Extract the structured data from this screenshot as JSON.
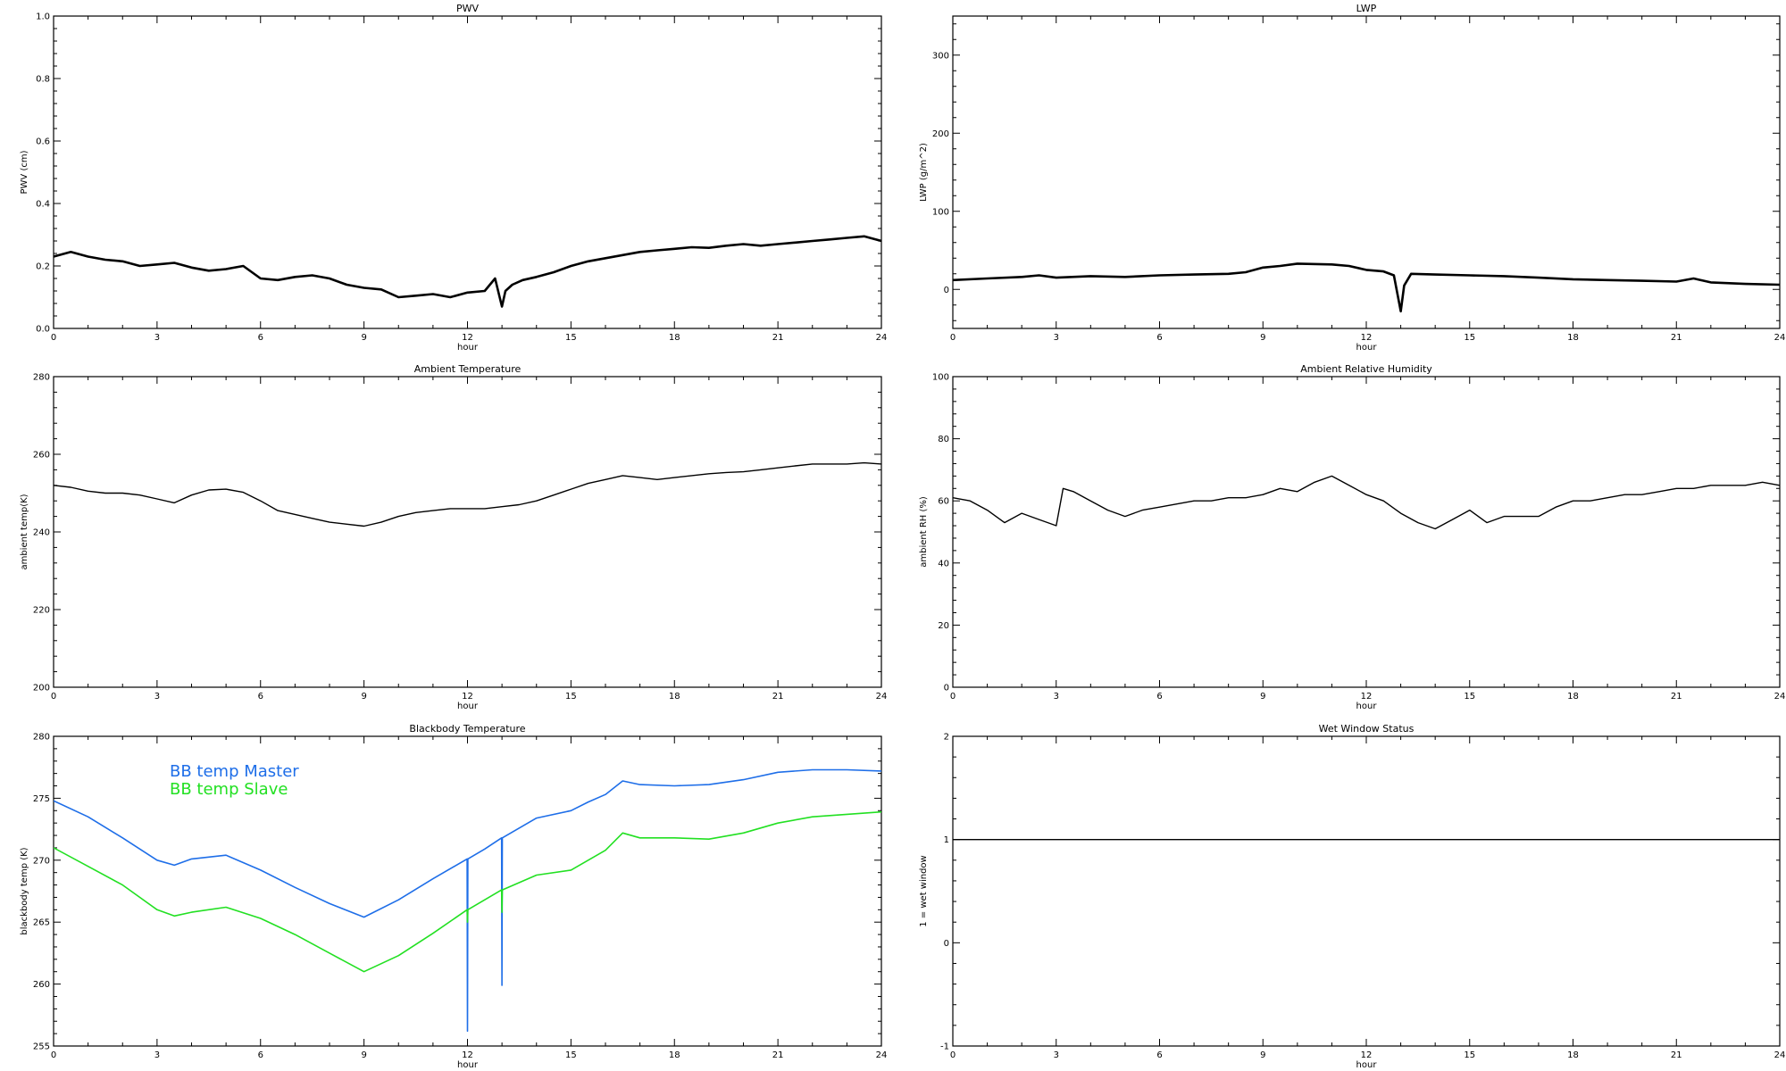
{
  "figure": {
    "background": "#ffffff"
  },
  "chart_data": [
    {
      "id": "pwv",
      "type": "line",
      "title": "PWV",
      "xlabel": "hour",
      "ylabel": "PWV (cm)",
      "xlim": [
        0,
        24
      ],
      "ylim": [
        0.0,
        1.0
      ],
      "xticks": [
        0,
        3,
        6,
        9,
        12,
        15,
        18,
        21,
        24
      ],
      "xtick_labels": [
        "0",
        "3",
        "6",
        "9",
        "12",
        "15",
        "18",
        "21",
        "24"
      ],
      "yticks": [
        0.0,
        0.2,
        0.4,
        0.6,
        0.8,
        1.0
      ],
      "ytick_labels": [
        "0.0",
        "0.2",
        "0.4",
        "0.6",
        "0.8",
        "1.0"
      ],
      "grid": false,
      "series": [
        {
          "color": "#000000",
          "x": [
            0,
            0.5,
            1,
            1.5,
            2,
            2.5,
            3,
            3.5,
            4,
            4.5,
            5,
            5.5,
            6,
            6.5,
            7,
            7.5,
            8,
            8.5,
            9,
            9.5,
            10,
            10.5,
            11,
            11.5,
            12,
            12.5,
            12.8,
            13.0,
            13.1,
            13.3,
            13.6,
            14,
            14.5,
            15,
            15.5,
            16,
            16.5,
            17,
            17.5,
            18,
            18.5,
            19,
            19.5,
            20,
            20.5,
            21,
            21.5,
            22,
            22.5,
            23,
            23.5,
            24
          ],
          "y": [
            0.23,
            0.245,
            0.23,
            0.22,
            0.215,
            0.2,
            0.205,
            0.21,
            0.195,
            0.185,
            0.19,
            0.2,
            0.16,
            0.155,
            0.165,
            0.17,
            0.16,
            0.14,
            0.13,
            0.125,
            0.1,
            0.105,
            0.11,
            0.1,
            0.115,
            0.12,
            0.16,
            0.07,
            0.12,
            0.14,
            0.155,
            0.165,
            0.18,
            0.2,
            0.215,
            0.225,
            0.235,
            0.245,
            0.25,
            0.255,
            0.26,
            0.258,
            0.265,
            0.27,
            0.265,
            0.27,
            0.275,
            0.28,
            0.285,
            0.29,
            0.295,
            0.28
          ]
        }
      ]
    },
    {
      "id": "lwp",
      "type": "line",
      "title": "LWP",
      "xlabel": "hour",
      "ylabel": "LWP (g/m^2)",
      "xlim": [
        0,
        24
      ],
      "ylim": [
        -50,
        350
      ],
      "xticks": [
        0,
        3,
        6,
        9,
        12,
        15,
        18,
        21,
        24
      ],
      "xtick_labels": [
        "0",
        "3",
        "6",
        "9",
        "12",
        "15",
        "18",
        "21",
        "24"
      ],
      "yticks": [
        0,
        100,
        200,
        300
      ],
      "ytick_labels": [
        "0",
        "100",
        "200",
        "300"
      ],
      "grid": false,
      "series": [
        {
          "color": "#000000",
          "x": [
            0,
            1,
            2,
            2.5,
            3,
            4,
            5,
            6,
            7,
            8,
            8.5,
            9,
            9.5,
            10,
            11,
            11.5,
            12,
            12.5,
            12.8,
            13.0,
            13.1,
            13.3,
            14,
            15,
            16,
            17,
            18,
            19,
            20,
            21,
            21.5,
            22,
            23,
            24
          ],
          "y": [
            12,
            14,
            16,
            18,
            15,
            17,
            16,
            18,
            19,
            20,
            22,
            28,
            30,
            33,
            32,
            30,
            25,
            23,
            18,
            -28,
            5,
            20,
            19,
            18,
            17,
            15,
            13,
            12,
            11,
            10,
            14,
            9,
            7,
            6
          ]
        }
      ]
    },
    {
      "id": "ambient_temp",
      "type": "line",
      "title": "Ambient Temperature",
      "xlabel": "hour",
      "ylabel": "ambient temp(K)",
      "xlim": [
        0,
        24
      ],
      "ylim": [
        200,
        280
      ],
      "xticks": [
        0,
        3,
        6,
        9,
        12,
        15,
        18,
        21,
        24
      ],
      "xtick_labels": [
        "0",
        "3",
        "6",
        "9",
        "12",
        "15",
        "18",
        "21",
        "24"
      ],
      "yticks": [
        200,
        220,
        240,
        260,
        280
      ],
      "ytick_labels": [
        "200",
        "220",
        "240",
        "260",
        "280"
      ],
      "grid": false,
      "series": [
        {
          "color": "#000000",
          "x": [
            0,
            0.5,
            1,
            1.5,
            2,
            2.5,
            3,
            3.5,
            4,
            4.5,
            5,
            5.5,
            6,
            6.5,
            7,
            7.5,
            8,
            8.5,
            9,
            9.5,
            10,
            10.5,
            11,
            11.5,
            12,
            12.5,
            13,
            13.5,
            14,
            14.5,
            15,
            15.5,
            16,
            16.5,
            17,
            17.5,
            18,
            18.5,
            19,
            19.5,
            20,
            20.5,
            21,
            21.5,
            22,
            22.5,
            23,
            23.5,
            24
          ],
          "y": [
            252,
            251.5,
            250.5,
            250,
            250,
            249.5,
            248.5,
            247.5,
            249.5,
            250.8,
            251,
            250.2,
            248,
            245.5,
            244.5,
            243.5,
            242.5,
            242,
            241.5,
            242.5,
            244,
            245,
            245.5,
            246,
            246,
            246,
            246.5,
            247,
            248,
            249.5,
            251,
            252.5,
            253.5,
            254.5,
            254,
            253.5,
            254,
            254.5,
            255,
            255.3,
            255.5,
            256,
            256.5,
            257,
            257.5,
            257.5,
            257.5,
            257.8,
            257.5
          ]
        }
      ]
    },
    {
      "id": "ambient_rh",
      "type": "line",
      "title": "Ambient Relative Humidity",
      "xlabel": "hour",
      "ylabel": "ambient RH (%)",
      "xlim": [
        0,
        24
      ],
      "ylim": [
        0,
        100
      ],
      "xticks": [
        0,
        3,
        6,
        9,
        12,
        15,
        18,
        21,
        24
      ],
      "xtick_labels": [
        "0",
        "3",
        "6",
        "9",
        "12",
        "15",
        "18",
        "21",
        "24"
      ],
      "yticks": [
        0,
        20,
        40,
        60,
        80,
        100
      ],
      "ytick_labels": [
        "0",
        "20",
        "40",
        "60",
        "80",
        "100"
      ],
      "grid": false,
      "series": [
        {
          "color": "#000000",
          "x": [
            0,
            0.5,
            1,
            1.5,
            2,
            2.5,
            3,
            3.2,
            3.5,
            4,
            4.5,
            5,
            5.5,
            6,
            6.5,
            7,
            7.5,
            8,
            8.5,
            9,
            9.5,
            10,
            10.5,
            11,
            11.5,
            12,
            12.5,
            13,
            13.5,
            14,
            14.5,
            15,
            15.5,
            16,
            16.5,
            17,
            17.5,
            18,
            18.5,
            19,
            19.5,
            20,
            20.5,
            21,
            21.5,
            22,
            22.5,
            23,
            23.5,
            24
          ],
          "y": [
            61,
            60,
            57,
            53,
            56,
            54,
            52,
            64,
            63,
            60,
            57,
            55,
            57,
            58,
            59,
            60,
            60,
            61,
            61,
            62,
            64,
            63,
            66,
            68,
            65,
            62,
            60,
            56,
            53,
            51,
            54,
            57,
            53,
            55,
            55,
            55,
            58,
            60,
            60,
            61,
            62,
            62,
            63,
            64,
            64,
            65,
            65,
            65,
            66,
            65
          ]
        }
      ]
    },
    {
      "id": "bb_temp",
      "type": "line",
      "title": "Blackbody Temperature",
      "xlabel": "hour",
      "ylabel": "blackbody temp (K)",
      "xlim": [
        0,
        24
      ],
      "ylim": [
        255,
        280
      ],
      "xticks": [
        0,
        3,
        6,
        9,
        12,
        15,
        18,
        21,
        24
      ],
      "xtick_labels": [
        "0",
        "3",
        "6",
        "9",
        "12",
        "15",
        "18",
        "21",
        "24"
      ],
      "yticks": [
        255,
        260,
        265,
        270,
        275,
        280
      ],
      "ytick_labels": [
        "255",
        "260",
        "265",
        "270",
        "275",
        "280"
      ],
      "grid": false,
      "legend": {
        "placement": "top-left"
      },
      "series": [
        {
          "name": "BB temp Master",
          "color": "#1e6ee8",
          "x": [
            0,
            1,
            2,
            3,
            3.5,
            4,
            5,
            6,
            7,
            8,
            9,
            10,
            11,
            11.99,
            12.0,
            12.01,
            12.5,
            12.99,
            13.0,
            13.01,
            14,
            15,
            15.5,
            16,
            16.5,
            17,
            18,
            19,
            20,
            21,
            22,
            23,
            24
          ],
          "y": [
            274.8,
            273.5,
            271.8,
            270.0,
            269.6,
            270.1,
            270.4,
            269.2,
            267.8,
            266.5,
            265.4,
            266.8,
            268.5,
            270.1,
            256.2,
            270.1,
            270.9,
            271.8,
            259.9,
            271.8,
            273.4,
            274.0,
            274.7,
            275.3,
            276.4,
            276.1,
            276.0,
            276.1,
            276.5,
            277.1,
            277.3,
            277.3,
            277.2
          ]
        },
        {
          "name": "BB temp Slave",
          "color": "#22e022",
          "x": [
            0,
            1,
            2,
            3,
            3.5,
            4,
            5,
            6,
            7,
            8,
            9,
            10,
            11,
            11.99,
            12.0,
            12.01,
            12.5,
            12.99,
            13.0,
            13.01,
            14,
            15,
            15.5,
            16,
            16.5,
            17,
            18,
            19,
            20,
            21,
            22,
            23,
            24
          ],
          "y": [
            271.0,
            269.5,
            268.0,
            266.0,
            265.5,
            265.8,
            266.2,
            265.3,
            264.0,
            262.5,
            261.0,
            262.3,
            264.1,
            266.0,
            265.0,
            266.0,
            266.8,
            267.6,
            265.8,
            267.6,
            268.8,
            269.2,
            270.0,
            270.8,
            272.2,
            271.8,
            271.8,
            271.7,
            272.2,
            273.0,
            273.5,
            273.7,
            273.9
          ]
        }
      ]
    },
    {
      "id": "wet_window",
      "type": "line",
      "title": "Wet Window Status",
      "xlabel": "hour",
      "ylabel": "1 = wet window",
      "xlim": [
        0,
        24
      ],
      "ylim": [
        -1,
        2
      ],
      "xticks": [
        0,
        3,
        6,
        9,
        12,
        15,
        18,
        21,
        24
      ],
      "xtick_labels": [
        "0",
        "3",
        "6",
        "9",
        "12",
        "15",
        "18",
        "21",
        "24"
      ],
      "yticks": [
        -1,
        0,
        1,
        2
      ],
      "ytick_labels": [
        "-1",
        "0",
        "1",
        "2"
      ],
      "grid": false,
      "series": [
        {
          "color": "#000000",
          "x": [
            0,
            24
          ],
          "y": [
            1,
            1
          ]
        }
      ]
    }
  ]
}
